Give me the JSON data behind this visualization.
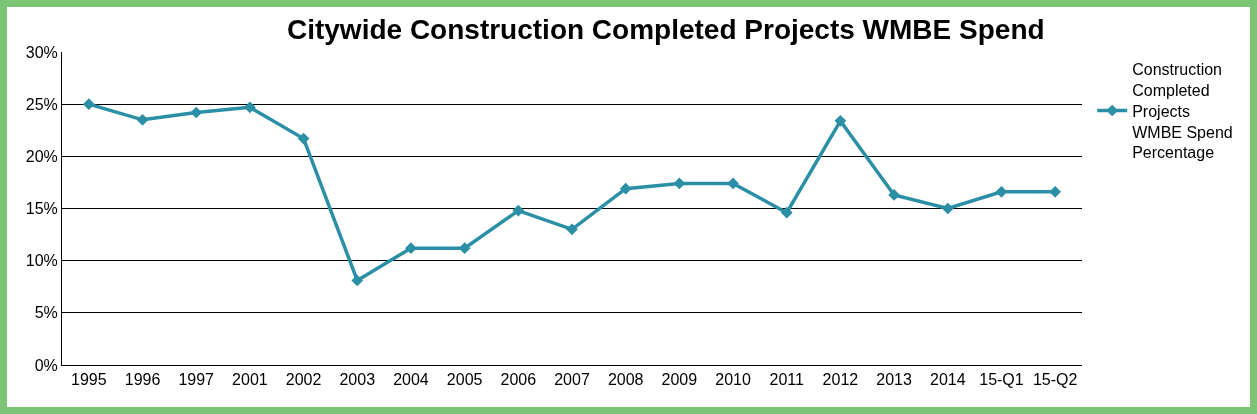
{
  "chart_data": {
    "type": "line",
    "title": "Citywide Construction Completed Projects WMBE Spend",
    "categories": [
      "1995",
      "1996",
      "1997",
      "2001",
      "2002",
      "2003",
      "2004",
      "2005",
      "2006",
      "2007",
      "2008",
      "2009",
      "2010",
      "2011",
      "2012",
      "2013",
      "2014",
      "15-Q1",
      "15-Q2"
    ],
    "series": [
      {
        "name": "Construction Completed Projects WMBE Spend Percentage",
        "color": "#2b8fa6",
        "values": [
          25,
          23.5,
          24.2,
          24.7,
          21.7,
          8.1,
          11.2,
          11.2,
          14.8,
          13,
          16.9,
          17.4,
          17.4,
          14.6,
          23.4,
          16.3,
          15,
          16.6,
          16.6
        ]
      }
    ],
    "ylim": [
      0,
      30
    ],
    "yticks": [
      {
        "value": 0,
        "label": "0%"
      },
      {
        "value": 5,
        "label": "5%"
      },
      {
        "value": 10,
        "label": "10%"
      },
      {
        "value": 15,
        "label": "15%"
      },
      {
        "value": 20,
        "label": "20%"
      },
      {
        "value": 25,
        "label": "25%"
      },
      {
        "value": 30,
        "label": "30%"
      }
    ],
    "grid": "y",
    "legend": "right",
    "marker": "diamond",
    "line_style": "solid"
  }
}
